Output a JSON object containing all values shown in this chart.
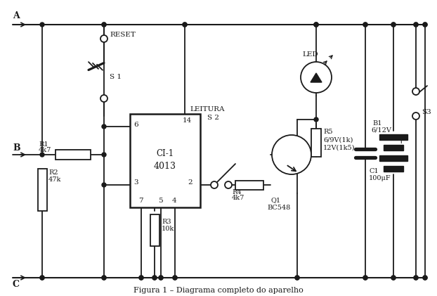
{
  "title": "Figura 1 – Diagrama completo do aparelho",
  "bg_color": "#ffffff",
  "line_color": "#1a1a1a",
  "fig_width": 6.22,
  "fig_height": 4.21,
  "dpi": 100,
  "label_A": "A",
  "label_B": "B",
  "label_C": "C",
  "label_RESET": "RESET",
  "label_S1": "S 1",
  "label_LEITURA": "LEITURA",
  "label_S2": "S 2",
  "label_LED": "LED",
  "label_R1": "R1",
  "label_R1_val": "4k7",
  "label_R2": "R2",
  "label_R2_val": "47k",
  "label_R3": "R3",
  "label_R3_val": "10k",
  "label_R4": "R4",
  "label_R4_val": "4k7",
  "label_R5": "R5",
  "label_R5_val1": "6/9V(1k)",
  "label_R5_val2": "12V(1k5)",
  "label_CI": "CI-1",
  "label_CI_num": "4013",
  "label_Q1": "Q1",
  "label_Q1_val": "BC548",
  "label_B1": "B1",
  "label_B1_val": "6/12V",
  "label_S3": "S3",
  "label_C1": "C1",
  "label_C1_val": "100μF",
  "pin6": "6",
  "pin14": "14",
  "pin3": "3",
  "pin7": "7",
  "pin5": "5",
  "pin4": "4",
  "pin2": "2"
}
